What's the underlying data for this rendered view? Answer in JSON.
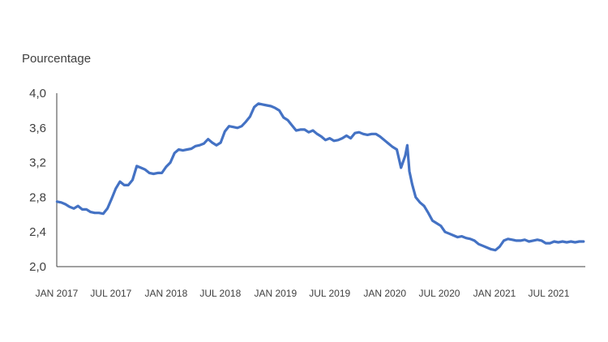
{
  "chart_data": {
    "type": "line",
    "ylabel": "Pourcentage",
    "ylim": [
      2.0,
      4.0
    ],
    "yticks": [
      "4,0",
      "3,6",
      "3,2",
      "2,8",
      "2,4",
      "2,0"
    ],
    "ytick_values": [
      4.0,
      3.6,
      3.2,
      2.8,
      2.4,
      2.0
    ],
    "xticks": [
      "JAN 2017",
      "JUL 2017",
      "JAN 2018",
      "JUL 2018",
      "JAN 2019",
      "JUL 2019",
      "JAN 2020",
      "JUL 2020",
      "JAN 2021",
      "JUL 2021"
    ],
    "xtick_positions": [
      "2017-01",
      "2017-07",
      "2018-01",
      "2018-07",
      "2019-01",
      "2019-07",
      "2020-01",
      "2020-07",
      "2021-01",
      "2021-07"
    ],
    "xlim": [
      "2017-01-01",
      "2021-10-31"
    ],
    "grid": false,
    "line_color": "#4472C4",
    "series": [
      {
        "x": [
          "2017-01-02",
          "2017-01-16",
          "2017-01-30",
          "2017-02-13",
          "2017-02-27",
          "2017-03-13",
          "2017-03-27",
          "2017-04-10",
          "2017-04-24",
          "2017-05-08",
          "2017-05-22",
          "2017-06-05",
          "2017-06-19",
          "2017-07-03",
          "2017-07-17",
          "2017-07-31",
          "2017-08-14",
          "2017-08-28",
          "2017-09-11",
          "2017-09-25",
          "2017-10-09",
          "2017-10-23",
          "2017-11-06",
          "2017-11-20",
          "2017-12-04",
          "2017-12-18",
          "2018-01-01",
          "2018-01-15",
          "2018-01-29",
          "2018-02-12",
          "2018-02-26",
          "2018-03-12",
          "2018-03-26",
          "2018-04-09",
          "2018-04-23",
          "2018-05-07",
          "2018-05-21",
          "2018-06-04",
          "2018-06-18",
          "2018-07-02",
          "2018-07-16",
          "2018-07-30",
          "2018-08-13",
          "2018-08-27",
          "2018-09-10",
          "2018-09-24",
          "2018-10-08",
          "2018-10-22",
          "2018-11-05",
          "2018-11-19",
          "2018-12-03",
          "2018-12-17",
          "2018-12-31",
          "2019-01-14",
          "2019-01-28",
          "2019-02-11",
          "2019-02-25",
          "2019-03-11",
          "2019-03-25",
          "2019-04-08",
          "2019-04-22",
          "2019-05-06",
          "2019-05-20",
          "2019-06-03",
          "2019-06-17",
          "2019-07-01",
          "2019-07-15",
          "2019-07-29",
          "2019-08-12",
          "2019-08-26",
          "2019-09-09",
          "2019-09-23",
          "2019-10-07",
          "2019-10-21",
          "2019-11-04",
          "2019-11-18",
          "2019-12-02",
          "2019-12-16",
          "2019-12-30",
          "2020-01-13",
          "2020-01-27",
          "2020-02-10",
          "2020-02-24",
          "2020-03-09",
          "2020-03-16",
          "2020-03-23",
          "2020-04-01",
          "2020-04-13",
          "2020-04-27",
          "2020-05-11",
          "2020-05-25",
          "2020-06-08",
          "2020-06-22",
          "2020-07-06",
          "2020-07-20",
          "2020-08-03",
          "2020-08-17",
          "2020-08-31",
          "2020-09-14",
          "2020-09-28",
          "2020-10-12",
          "2020-10-26",
          "2020-11-09",
          "2020-11-23",
          "2020-12-07",
          "2020-12-21",
          "2021-01-04",
          "2021-01-18",
          "2021-02-01",
          "2021-02-15",
          "2021-03-01",
          "2021-03-15",
          "2021-03-29",
          "2021-04-12",
          "2021-04-26",
          "2021-05-10",
          "2021-05-24",
          "2021-06-07",
          "2021-06-21",
          "2021-07-05",
          "2021-07-19",
          "2021-08-02",
          "2021-08-16",
          "2021-08-30",
          "2021-09-13",
          "2021-09-27",
          "2021-10-11",
          "2021-10-25"
        ],
        "y": [
          2.75,
          2.74,
          2.72,
          2.69,
          2.67,
          2.7,
          2.66,
          2.66,
          2.63,
          2.62,
          2.62,
          2.61,
          2.67,
          2.78,
          2.9,
          2.98,
          2.94,
          2.94,
          3.0,
          3.16,
          3.14,
          3.12,
          3.08,
          3.07,
          3.08,
          3.08,
          3.15,
          3.2,
          3.31,
          3.35,
          3.34,
          3.35,
          3.36,
          3.39,
          3.4,
          3.42,
          3.47,
          3.43,
          3.4,
          3.43,
          3.56,
          3.62,
          3.61,
          3.6,
          3.62,
          3.67,
          3.73,
          3.84,
          3.88,
          3.87,
          3.86,
          3.85,
          3.83,
          3.8,
          3.72,
          3.69,
          3.63,
          3.57,
          3.58,
          3.58,
          3.55,
          3.57,
          3.53,
          3.5,
          3.46,
          3.48,
          3.45,
          3.46,
          3.48,
          3.51,
          3.48,
          3.54,
          3.55,
          3.53,
          3.52,
          3.53,
          3.53,
          3.5,
          3.46,
          3.42,
          3.38,
          3.35,
          3.14,
          3.28,
          3.4,
          3.1,
          2.95,
          2.8,
          2.74,
          2.7,
          2.62,
          2.53,
          2.5,
          2.47,
          2.4,
          2.38,
          2.36,
          2.34,
          2.35,
          2.33,
          2.32,
          2.3,
          2.26,
          2.24,
          2.22,
          2.2,
          2.19,
          2.23,
          2.3,
          2.32,
          2.31,
          2.3,
          2.3,
          2.31,
          2.29,
          2.3,
          2.31,
          2.3,
          2.27,
          2.27,
          2.29,
          2.28,
          2.29,
          2.28,
          2.29,
          2.28,
          2.29,
          2.29
        ]
      }
    ]
  }
}
